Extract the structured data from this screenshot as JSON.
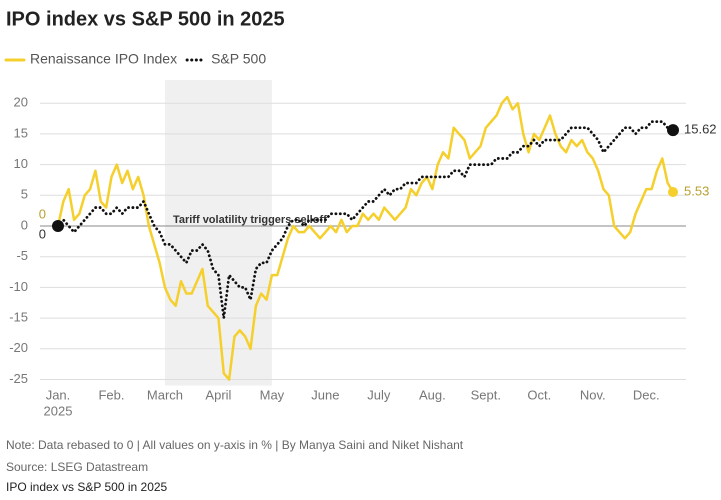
{
  "chart_data": {
    "type": "line",
    "title": "IPO index vs S&P 500 in 2025",
    "categories": [
      "Jan.",
      null,
      null,
      null,
      null,
      null,
      null,
      null,
      null,
      null,
      "Feb.",
      null,
      null,
      null,
      null,
      null,
      null,
      null,
      null,
      null,
      "March",
      null,
      null,
      null,
      null,
      null,
      null,
      null,
      null,
      null,
      "April",
      null,
      null,
      null,
      null,
      null,
      null,
      null,
      null,
      null,
      "May",
      null,
      null,
      null,
      null,
      null,
      null,
      null,
      null,
      null,
      "June",
      null,
      null,
      null,
      null,
      null,
      null,
      null,
      null,
      null,
      "July",
      null,
      null,
      null,
      null,
      null,
      null,
      null,
      null,
      null,
      "Aug.",
      null,
      null,
      null,
      null,
      null,
      null,
      null,
      null,
      null,
      "Sept.",
      null,
      null,
      null,
      null,
      null,
      null,
      null,
      null,
      null,
      "Oct.",
      null,
      null,
      null,
      null,
      null,
      null,
      null,
      null,
      null,
      "Nov.",
      null,
      null,
      null,
      null,
      null,
      null,
      null,
      null,
      null,
      "Dec.",
      null,
      null,
      null,
      null,
      null
    ],
    "x_year": "2025",
    "series": [
      {
        "name": "Renaissance IPO Index",
        "color": "#f5cf2c",
        "style": "solid",
        "values": [
          0,
          4,
          6,
          1,
          2,
          5,
          6,
          9,
          4,
          3,
          8,
          10,
          7,
          9,
          6,
          8,
          5,
          0,
          -3,
          -6,
          -10,
          -12,
          -13,
          -9,
          -11,
          -11,
          -9,
          -7,
          -13,
          -14,
          -15,
          -24,
          -25,
          -18,
          -17,
          -18,
          -20,
          -13,
          -11,
          -12,
          -8,
          -8,
          -5,
          -2,
          0,
          -1,
          -1,
          0,
          -1,
          -2,
          -1,
          0,
          -1,
          1,
          -1,
          0,
          0,
          2,
          1,
          2,
          1,
          3,
          2,
          1,
          2,
          3,
          6,
          5,
          7,
          8,
          6,
          10,
          12,
          11,
          16,
          15,
          14,
          11,
          12,
          13,
          16,
          17,
          18,
          20,
          21,
          19,
          20,
          15,
          12,
          15,
          14,
          16,
          18,
          15,
          13,
          12,
          14,
          13,
          14,
          12,
          11,
          9,
          6,
          5,
          0,
          -1,
          -2,
          -1,
          2,
          4,
          6,
          6,
          9,
          11,
          7,
          5.53
        ]
      },
      {
        "name": "S&P 500",
        "color": "#111111",
        "style": "dotted",
        "values": [
          0,
          1,
          0,
          -1,
          0,
          1,
          2,
          3,
          3,
          2,
          2,
          3,
          2,
          3,
          3,
          3,
          4,
          2,
          0,
          -1,
          -3,
          -3,
          -4,
          -5,
          -6,
          -4,
          -4,
          -3,
          -4,
          -7,
          -8,
          -15,
          -8,
          -9,
          -10,
          -10,
          -12,
          -7,
          -6,
          -6,
          -4,
          -3,
          -2,
          0,
          1,
          1,
          0,
          1,
          1,
          1,
          1,
          2,
          2,
          2,
          2,
          1,
          2,
          3,
          4,
          4,
          5,
          6,
          5,
          6,
          6,
          7,
          7,
          7,
          8,
          8,
          8,
          8,
          8,
          8,
          9,
          9,
          8,
          10,
          10,
          10,
          10,
          10,
          11,
          11,
          11,
          12,
          12,
          13,
          13,
          14,
          13,
          14,
          14,
          14,
          14,
          15,
          16,
          16,
          16,
          16,
          15,
          14,
          12,
          13,
          14,
          15,
          16,
          16,
          15,
          16,
          16,
          17,
          17,
          17,
          16,
          15.62
        ]
      }
    ],
    "ylim": [
      -26,
      22
    ],
    "yticks": [
      -25,
      -20,
      -15,
      -10,
      -5,
      0,
      5,
      10,
      15,
      20
    ],
    "grid": true,
    "annotation": {
      "text": "Tariff volatility triggers selloff",
      "x_start": 20,
      "x_end": 40
    },
    "note": "Note: Data rebased to 0 | All values on y-axis in % | By Manya Saini and Niket Nishant",
    "source": "Source: LSEG Datastream",
    "caption": "IPO index vs S&P 500 in 2025"
  }
}
